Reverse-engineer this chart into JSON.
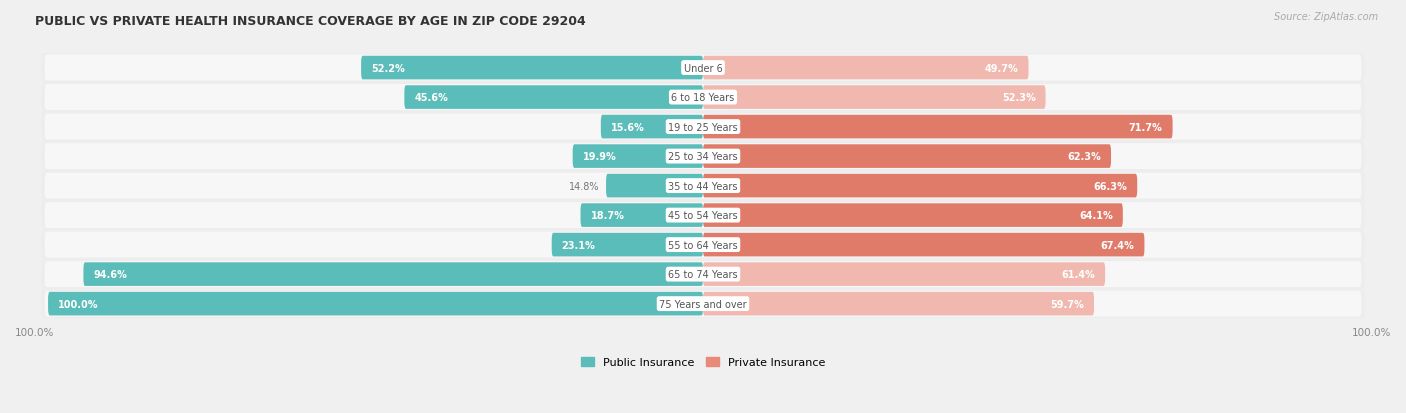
{
  "title": "PUBLIC VS PRIVATE HEALTH INSURANCE COVERAGE BY AGE IN ZIP CODE 29204",
  "source": "Source: ZipAtlas.com",
  "categories": [
    "Under 6",
    "6 to 18 Years",
    "19 to 25 Years",
    "25 to 34 Years",
    "35 to 44 Years",
    "45 to 54 Years",
    "55 to 64 Years",
    "65 to 74 Years",
    "75 Years and over"
  ],
  "public_values": [
    52.2,
    45.6,
    15.6,
    19.9,
    14.8,
    18.7,
    23.1,
    94.6,
    100.0
  ],
  "private_values": [
    49.7,
    52.3,
    71.7,
    62.3,
    66.3,
    64.1,
    67.4,
    61.4,
    59.7
  ],
  "public_color": "#5bbdb9",
  "private_colors": [
    "#f0b8ae",
    "#f0b8ae",
    "#e07b6a",
    "#e07b6a",
    "#e07b6a",
    "#e07b6a",
    "#e07b6a",
    "#f0b8ae",
    "#f0b8ae"
  ],
  "row_bg_color": "#ededee",
  "row_inner_color": "#f7f7f8",
  "label_color_light": "#ffffff",
  "label_color_dark": "#777777",
  "center_label_color": "#555555",
  "title_color": "#333333",
  "source_color": "#aaaaaa",
  "figsize": [
    14.06,
    4.14
  ],
  "dpi": 100
}
